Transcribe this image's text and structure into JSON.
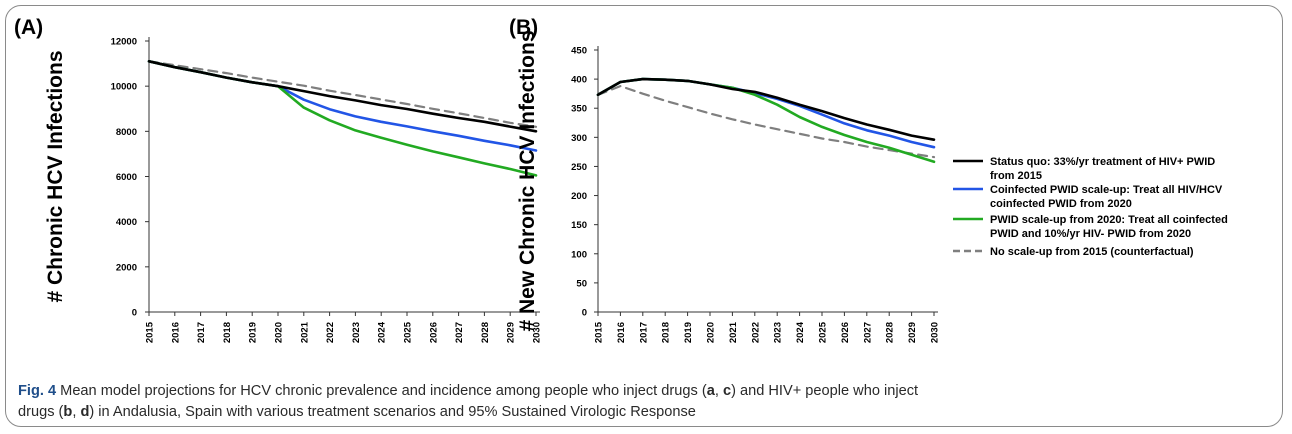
{
  "chart_data": [
    {
      "panel": "(A)",
      "type": "line",
      "ylabel": "# Chronic HCV Infections",
      "ylim": [
        0,
        12000
      ],
      "yticks": [
        "0",
        "2000",
        "4000",
        "6000",
        "8000",
        "10000",
        "12000"
      ],
      "x": [
        "2015",
        "2016",
        "2017",
        "2018",
        "2019",
        "2020",
        "2021",
        "2022",
        "2023",
        "2024",
        "2025",
        "2026",
        "2027",
        "2028",
        "2029",
        "2030"
      ],
      "series": [
        {
          "values": [
            11100,
            10840,
            10620,
            10380,
            10170,
            10000,
            9780,
            9560,
            9370,
            9160,
            8990,
            8780,
            8590,
            8420,
            8210,
            8000
          ]
        },
        {
          "values": [
            11100,
            10840,
            10620,
            10380,
            10170,
            10000,
            9400,
            8980,
            8660,
            8420,
            8220,
            8000,
            7800,
            7580,
            7380,
            7150
          ]
        },
        {
          "values": [
            11100,
            10840,
            10620,
            10380,
            10170,
            10000,
            9050,
            8490,
            8040,
            7720,
            7410,
            7110,
            6850,
            6580,
            6330,
            6050
          ]
        },
        {
          "values": [
            11100,
            10930,
            10750,
            10580,
            10380,
            10200,
            10020,
            9800,
            9610,
            9410,
            9210,
            9000,
            8800,
            8590,
            8380,
            8200
          ]
        }
      ]
    },
    {
      "panel": "(B)",
      "type": "line",
      "ylabel": "# New Chronic HCV Infections",
      "ylim": [
        0,
        450
      ],
      "yticks": [
        "0",
        "50",
        "100",
        "150",
        "200",
        "250",
        "300",
        "350",
        "400",
        "450"
      ],
      "x": [
        "2015",
        "2016",
        "2017",
        "2018",
        "2019",
        "2020",
        "2021",
        "2022",
        "2023",
        "2024",
        "2025",
        "2026",
        "2027",
        "2028",
        "2029",
        "2030"
      ],
      "series": [
        {
          "values": [
            373,
            395,
            400,
            399,
            397,
            391,
            383,
            378,
            368,
            356,
            345,
            333,
            322,
            313,
            303,
            296
          ]
        },
        {
          "values": [
            373,
            395,
            400,
            399,
            397,
            391,
            385,
            376,
            366,
            354,
            339,
            324,
            312,
            303,
            292,
            283
          ]
        },
        {
          "values": [
            373,
            395,
            400,
            399,
            397,
            391,
            385,
            373,
            356,
            335,
            318,
            304,
            292,
            282,
            270,
            258
          ]
        },
        {
          "values": [
            373,
            388,
            375,
            363,
            352,
            341,
            331,
            322,
            314,
            306,
            298,
            292,
            284,
            278,
            272,
            266
          ]
        }
      ]
    }
  ],
  "legend": [
    {
      "line1": "Status quo: 33%/yr treatment of HIV+ PWID",
      "line2": "from 2015",
      "color": "#000000",
      "dash": false
    },
    {
      "line1": "Coinfected PWID scale-up: Treat all HIV/HCV",
      "line2": "coinfected PWID from 2020",
      "color": "#2255e6",
      "dash": false
    },
    {
      "line1": "PWID scale-up from 2020: Treat all coinfected",
      "line2": "PWID and 10%/yr HIV- PWID from 2020",
      "color": "#22aa22",
      "dash": false
    },
    {
      "line1": "No scale-up from 2015 (counterfactual)",
      "line2": "",
      "color": "#7f7f7f",
      "dash": true
    }
  ],
  "caption": {
    "label": "Fig. 4",
    "part1": " Mean model projections for HCV chronic prevalence and incidence among people who inject drugs (",
    "a": "a",
    "sep1": ", ",
    "c": "c",
    "part2": ") and HIV+ people who inject",
    "part3": "drugs (",
    "b": "b",
    "sep2": ", ",
    "d": "d",
    "part4": ") in Andalusia, Spain with various treatment scenarios and 95% Sustained Virologic Response"
  }
}
